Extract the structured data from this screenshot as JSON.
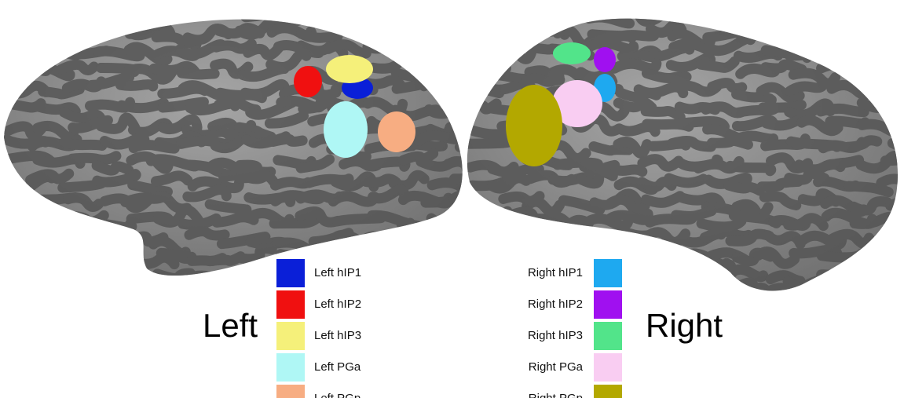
{
  "left": {
    "label": "Left",
    "regions": [
      {
        "name": "Left hIP1",
        "color": "#0a1fd8"
      },
      {
        "name": "Left hIP2",
        "color": "#f01010"
      },
      {
        "name": "Left hIP3",
        "color": "#f5f07a"
      },
      {
        "name": "Left PGa",
        "color": "#aff7f5"
      },
      {
        "name": "Left PGp",
        "color": "#f7ad82"
      }
    ]
  },
  "right": {
    "label": "Right",
    "regions": [
      {
        "name": "Right hIP1",
        "color": "#1ea9f0"
      },
      {
        "name": "Right hIP2",
        "color": "#a010f0"
      },
      {
        "name": "Right hIP3",
        "color": "#52e48a"
      },
      {
        "name": "Right PGa",
        "color": "#f9cdf2"
      },
      {
        "name": "Right PGp",
        "color": "#b3a800"
      }
    ]
  }
}
